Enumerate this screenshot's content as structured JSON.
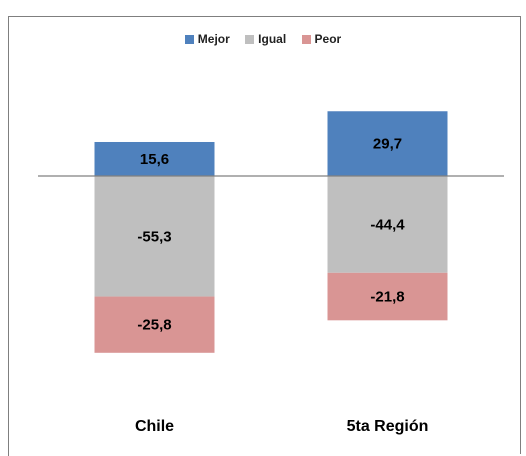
{
  "title_fragment": "",
  "chart_data": {
    "type": "bar",
    "stacked": true,
    "categories": [
      "Chile",
      "5ta Región"
    ],
    "series": [
      {
        "name": "Mejor",
        "values": [
          15.6,
          29.7
        ],
        "labels": [
          "15,6",
          "29,7"
        ],
        "color": "#4f81bd"
      },
      {
        "name": "Igual",
        "values": [
          -55.3,
          -44.4
        ],
        "labels": [
          "-55,3",
          "-44,4"
        ],
        "color": "#bfbfbf"
      },
      {
        "name": "Peor",
        "values": [
          -25.8,
          -21.8
        ],
        "labels": [
          "-25,8",
          "-21,8"
        ],
        "color": "#d99594"
      }
    ],
    "ylim": [
      -95,
      55
    ],
    "legend_position": "top",
    "grid": false,
    "zero_line_color": "#808080"
  }
}
